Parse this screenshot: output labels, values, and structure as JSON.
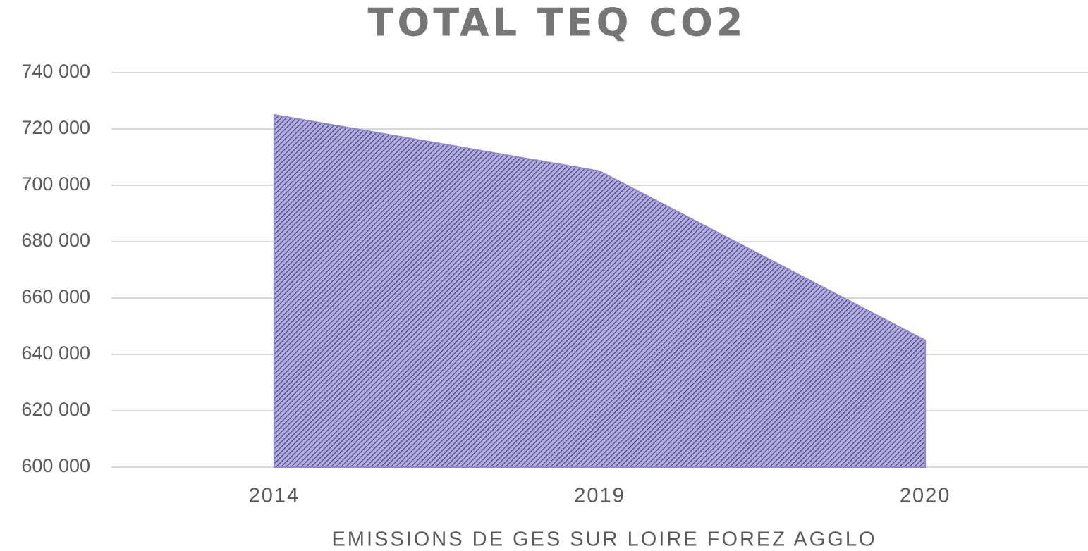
{
  "chart_data": {
    "type": "area",
    "title": "TOTAL TEQ CO2",
    "x_label": "EMISSIONS DE GES SUR LOIRE FOREZ AGGLO",
    "categories": [
      "2014",
      "2019",
      "2020"
    ],
    "values": [
      725000,
      705000,
      645000
    ],
    "color": "#8f88d0",
    "ylim": [
      600000,
      740000
    ],
    "yticks": [
      {
        "value": 600000,
        "label": "600 000"
      },
      {
        "value": 620000,
        "label": "620 000"
      },
      {
        "value": 640000,
        "label": "640 000"
      },
      {
        "value": 660000,
        "label": "660 000"
      },
      {
        "value": 680000,
        "label": "680 000"
      },
      {
        "value": 700000,
        "label": "700 000"
      },
      {
        "value": 720000,
        "label": "720 000"
      },
      {
        "value": 740000,
        "label": "740 000"
      }
    ],
    "grid": true
  }
}
